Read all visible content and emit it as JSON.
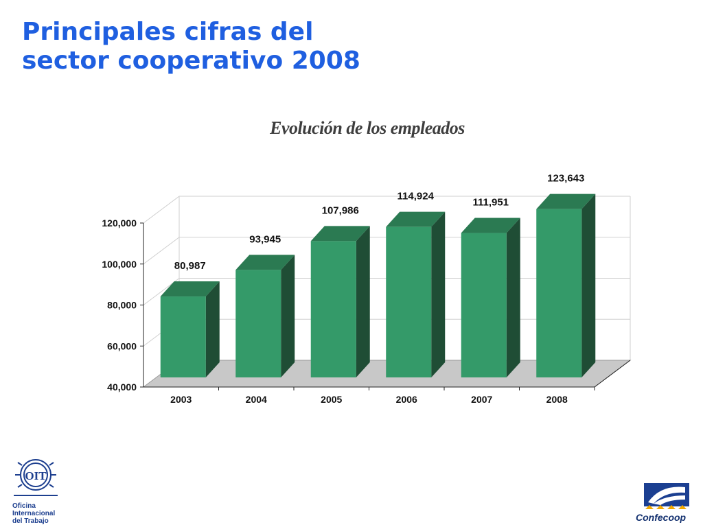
{
  "slide": {
    "title_line1": "Principales cifras del",
    "title_line2": "sector cooperativo 2008"
  },
  "colors": {
    "title": "#1f5fe0",
    "bar_front": "#349a69",
    "bar_side": "#1f4d35",
    "bar_top": "#2b7a52",
    "floor": "#c8c8c8",
    "grid": "#cfcfcf"
  },
  "chart_data": {
    "type": "bar",
    "title": "Evolución de los empleados",
    "categories": [
      "2003",
      "2004",
      "2005",
      "2006",
      "2007",
      "2008"
    ],
    "values": [
      80987,
      93945,
      107986,
      114924,
      111951,
      123643
    ],
    "data_labels": [
      "80,987",
      "93,945",
      "107,986",
      "114,924",
      "111,951",
      "123,643"
    ],
    "yticks": [
      "40,000",
      "60,000",
      "80,000",
      "100,000",
      "120,000"
    ],
    "ylim": [
      40000,
      120000
    ],
    "xlabel": "",
    "ylabel": "",
    "grid": true,
    "legend": "none",
    "style": "3d-columns"
  },
  "logos": {
    "oit_text_1": "Oficina",
    "oit_text_2": "Internacional",
    "oit_text_3": "del Trabajo",
    "oit_emblem": "OIT",
    "confecoop_text": "Confecoop"
  }
}
